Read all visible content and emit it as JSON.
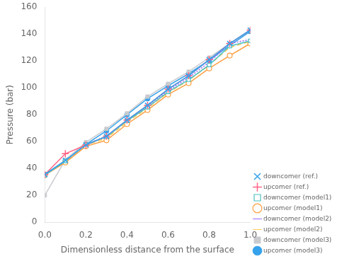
{
  "chart_data": {
    "type": "line",
    "x": [
      0.0,
      0.1,
      0.2,
      0.3,
      0.4,
      0.5,
      0.6,
      0.7,
      0.8,
      0.9,
      1.0
    ],
    "series": [
      {
        "name": "downcomer (ref.)",
        "values": [
          35.5,
          46.0,
          57.5,
          64.0,
          76.0,
          87.0,
          99.0,
          109.0,
          121.0,
          133.0,
          143.0
        ],
        "marker": "x",
        "line_style": "solid"
      },
      {
        "name": "upcomer (ref.)",
        "values": [
          35.5,
          51.0,
          57.5,
          64.0,
          76.0,
          87.0,
          99.0,
          109.0,
          121.0,
          133.0,
          143.0
        ],
        "marker": "plus",
        "line_style": "solid"
      },
      {
        "name": "downcomer (model1)",
        "values": [
          35.0,
          45.5,
          58.0,
          63.5,
          75.5,
          85.5,
          97.0,
          106.0,
          117.0,
          131.0,
          135.0
        ],
        "marker": "square_open",
        "line_style": "solid"
      },
      {
        "name": "upcomer (model1)",
        "values": [
          35.0,
          44.5,
          56.5,
          61.0,
          73.0,
          83.5,
          95.0,
          103.5,
          114.5,
          124.0,
          133.0
        ],
        "marker": "circle_open",
        "line_style": "solid"
      },
      {
        "name": "downcomer (model2)",
        "values": [
          35.5,
          46.0,
          58.0,
          64.0,
          76.0,
          86.5,
          98.0,
          107.5,
          119.0,
          133.0,
          136.0
        ],
        "marker": "none",
        "line_style": "dotted"
      },
      {
        "name": "upcomer (model2)",
        "values": [
          35.0,
          45.5,
          57.5,
          62.5,
          74.5,
          85.0,
          96.5,
          105.5,
          117.0,
          130.0,
          134.5
        ],
        "marker": "none",
        "line_style": "dashed"
      },
      {
        "name": "downcomer (model3)",
        "values": [
          20.0,
          46.5,
          59.5,
          69.5,
          81.0,
          93.5,
          103.0,
          112.0,
          122.5,
          133.0,
          143.0
        ],
        "marker": "square",
        "line_style": "solid"
      },
      {
        "name": "upcomer (model3)",
        "values": [
          35.5,
          46.0,
          58.0,
          68.0,
          80.0,
          92.0,
          101.5,
          110.5,
          120.5,
          131.5,
          142.0
        ],
        "marker": "circle",
        "line_style": "solid"
      }
    ],
    "xlabel": "Dimensionless distance from the surface",
    "ylabel": "Pressure (bar)",
    "xlim": [
      0.0,
      1.0
    ],
    "ylim": [
      0,
      160
    ],
    "xticks": [
      {
        "value": 0.0,
        "label": "0.0"
      },
      0.2,
      0.4,
      0.6,
      0.8,
      {
        "value": 1.0,
        "label": "1.0"
      }
    ],
    "yticks": [
      0,
      20,
      40,
      60,
      80,
      100,
      120,
      140,
      160
    ],
    "grid": false,
    "legend": "lower right"
  }
}
